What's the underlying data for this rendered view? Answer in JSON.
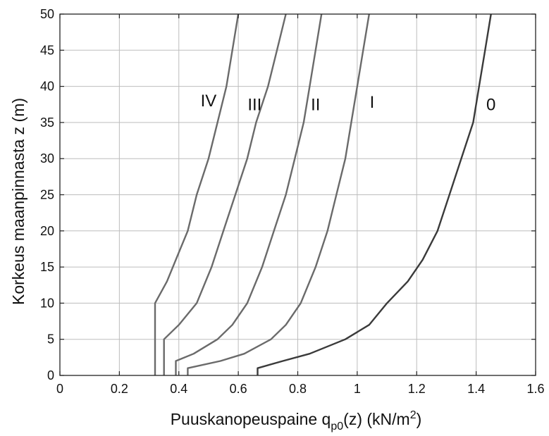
{
  "chart_data": {
    "type": "line",
    "xlabel": "Puuskanopeuspaine q",
    "xlabel_sub": "p0",
    "xlabel_tail": "(z) (kN/m",
    "xlabel_sup": "2",
    "xlabel_end": ")",
    "ylabel": "Korkeus maanpinnasta z (m)",
    "xlim": [
      0,
      1.6
    ],
    "ylim": [
      0,
      50
    ],
    "xticks": [
      0,
      0.2,
      0.4,
      0.6,
      0.8,
      1,
      1.2,
      1.4,
      1.6
    ],
    "xtick_labels": [
      "0",
      "0.2",
      "0.4",
      "0.6",
      "0.8",
      "1",
      "1.2",
      "1.4",
      "1.6"
    ],
    "yticks": [
      0,
      5,
      10,
      15,
      20,
      25,
      30,
      35,
      40,
      45,
      50
    ],
    "ytick_labels": [
      "0",
      "5",
      "10",
      "15",
      "20",
      "25",
      "30",
      "35",
      "40",
      "45",
      "50"
    ],
    "grid": true,
    "series": [
      {
        "name": "0",
        "color": "#3a3a3a",
        "label_at": [
          1.45,
          37.5
        ],
        "points": [
          [
            0.665,
            0
          ],
          [
            0.665,
            1
          ],
          [
            0.75,
            2
          ],
          [
            0.84,
            3
          ],
          [
            0.96,
            5
          ],
          [
            1.04,
            7
          ],
          [
            1.1,
            10
          ],
          [
            1.17,
            13
          ],
          [
            1.22,
            16
          ],
          [
            1.27,
            20
          ],
          [
            1.31,
            25
          ],
          [
            1.35,
            30
          ],
          [
            1.39,
            35
          ],
          [
            1.41,
            40
          ],
          [
            1.43,
            45
          ],
          [
            1.45,
            50
          ]
        ]
      },
      {
        "name": "I",
        "color": "#6a6a6a",
        "label_at": [
          1.05,
          37.8
        ],
        "points": [
          [
            0.43,
            0
          ],
          [
            0.43,
            1
          ],
          [
            0.54,
            2
          ],
          [
            0.62,
            3
          ],
          [
            0.71,
            5
          ],
          [
            0.76,
            7
          ],
          [
            0.81,
            10
          ],
          [
            0.86,
            15
          ],
          [
            0.9,
            20
          ],
          [
            0.93,
            25
          ],
          [
            0.96,
            30
          ],
          [
            0.98,
            35
          ],
          [
            1.0,
            40
          ],
          [
            1.02,
            45
          ],
          [
            1.04,
            50
          ]
        ]
      },
      {
        "name": "II",
        "color": "#6a6a6a",
        "label_at": [
          0.86,
          37.5
        ],
        "points": [
          [
            0.39,
            0
          ],
          [
            0.39,
            2
          ],
          [
            0.45,
            3
          ],
          [
            0.53,
            5
          ],
          [
            0.58,
            7
          ],
          [
            0.63,
            10
          ],
          [
            0.68,
            15
          ],
          [
            0.72,
            20
          ],
          [
            0.76,
            25
          ],
          [
            0.79,
            30
          ],
          [
            0.82,
            35
          ],
          [
            0.84,
            40
          ],
          [
            0.86,
            45
          ],
          [
            0.88,
            50
          ]
        ]
      },
      {
        "name": "III",
        "color": "#6a6a6a",
        "label_at": [
          0.655,
          37.5
        ],
        "points": [
          [
            0.35,
            0
          ],
          [
            0.35,
            5
          ],
          [
            0.4,
            7
          ],
          [
            0.46,
            10
          ],
          [
            0.51,
            15
          ],
          [
            0.55,
            20
          ],
          [
            0.59,
            25
          ],
          [
            0.63,
            30
          ],
          [
            0.66,
            35
          ],
          [
            0.7,
            40
          ],
          [
            0.73,
            45
          ],
          [
            0.76,
            50
          ]
        ]
      },
      {
        "name": "IV",
        "color": "#6a6a6a",
        "label_at": [
          0.5,
          38.0
        ],
        "points": [
          [
            0.32,
            0
          ],
          [
            0.32,
            10
          ],
          [
            0.36,
            13
          ],
          [
            0.39,
            16
          ],
          [
            0.43,
            20
          ],
          [
            0.46,
            25
          ],
          [
            0.5,
            30
          ],
          [
            0.53,
            35
          ],
          [
            0.56,
            40
          ],
          [
            0.58,
            45
          ],
          [
            0.6,
            50
          ]
        ]
      }
    ]
  }
}
